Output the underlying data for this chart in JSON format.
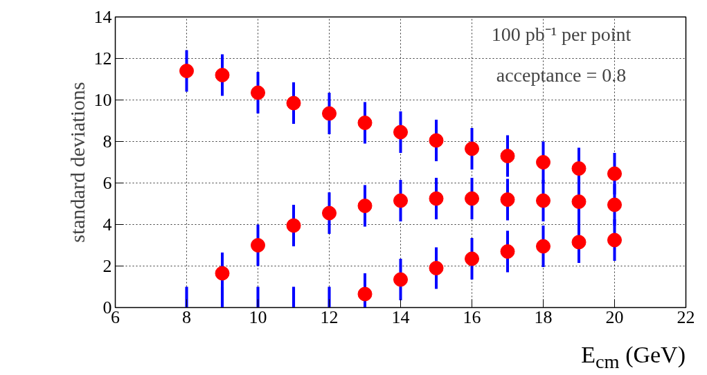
{
  "chart_data": {
    "type": "scatter",
    "xlabel": "E$_{cm}$ (GeV)",
    "ylabel": "standard deviations",
    "annotations": [
      "100 pb⁻¹ per point",
      "acceptance = 0.8"
    ],
    "xlim": [
      6,
      22
    ],
    "xticks": [
      6,
      8,
      10,
      12,
      14,
      16,
      18,
      20,
      22
    ],
    "ylim": [
      0,
      14
    ],
    "yticks": [
      0,
      2,
      4,
      6,
      8,
      10,
      12,
      14
    ],
    "grid": true,
    "marker": "circle",
    "series": [
      {
        "color": "#ff0000",
        "x": [
          8,
          9,
          10,
          11,
          12,
          13,
          14,
          15,
          16,
          17,
          18,
          19,
          20
        ],
        "values": [
          11.4,
          11.2,
          10.35,
          9.85,
          9.35,
          8.9,
          8.45,
          8.05,
          7.65,
          7.3,
          7.0,
          6.7,
          6.45
        ],
        "errors": [
          1,
          1,
          1,
          1,
          1,
          1,
          1,
          1,
          1,
          1,
          1,
          1,
          1
        ]
      },
      {
        "color": "#ff0000",
        "x": [
          9,
          10,
          11,
          12,
          13,
          14,
          15,
          16,
          17,
          18,
          19,
          20
        ],
        "values": [
          1.65,
          3.0,
          3.95,
          4.55,
          4.9,
          5.15,
          5.25,
          5.25,
          5.2,
          5.15,
          5.1,
          4.95
        ],
        "errors": [
          1,
          1,
          1,
          1,
          1,
          1,
          1,
          1,
          1,
          1,
          1,
          1
        ]
      },
      {
        "color": "#ff0000",
        "x": [
          13,
          14,
          15,
          16,
          17,
          18,
          19,
          20
        ],
        "values": [
          0.65,
          1.35,
          1.9,
          2.35,
          2.7,
          2.95,
          3.15,
          3.25
        ],
        "errors": [
          1,
          1,
          1,
          1,
          1,
          1,
          1,
          1
        ]
      },
      {
        "type": "bar",
        "color": "#0000ff",
        "x": [
          8,
          9,
          10,
          11,
          12
        ],
        "values": [
          1,
          1,
          1,
          1,
          1
        ]
      }
    ]
  }
}
